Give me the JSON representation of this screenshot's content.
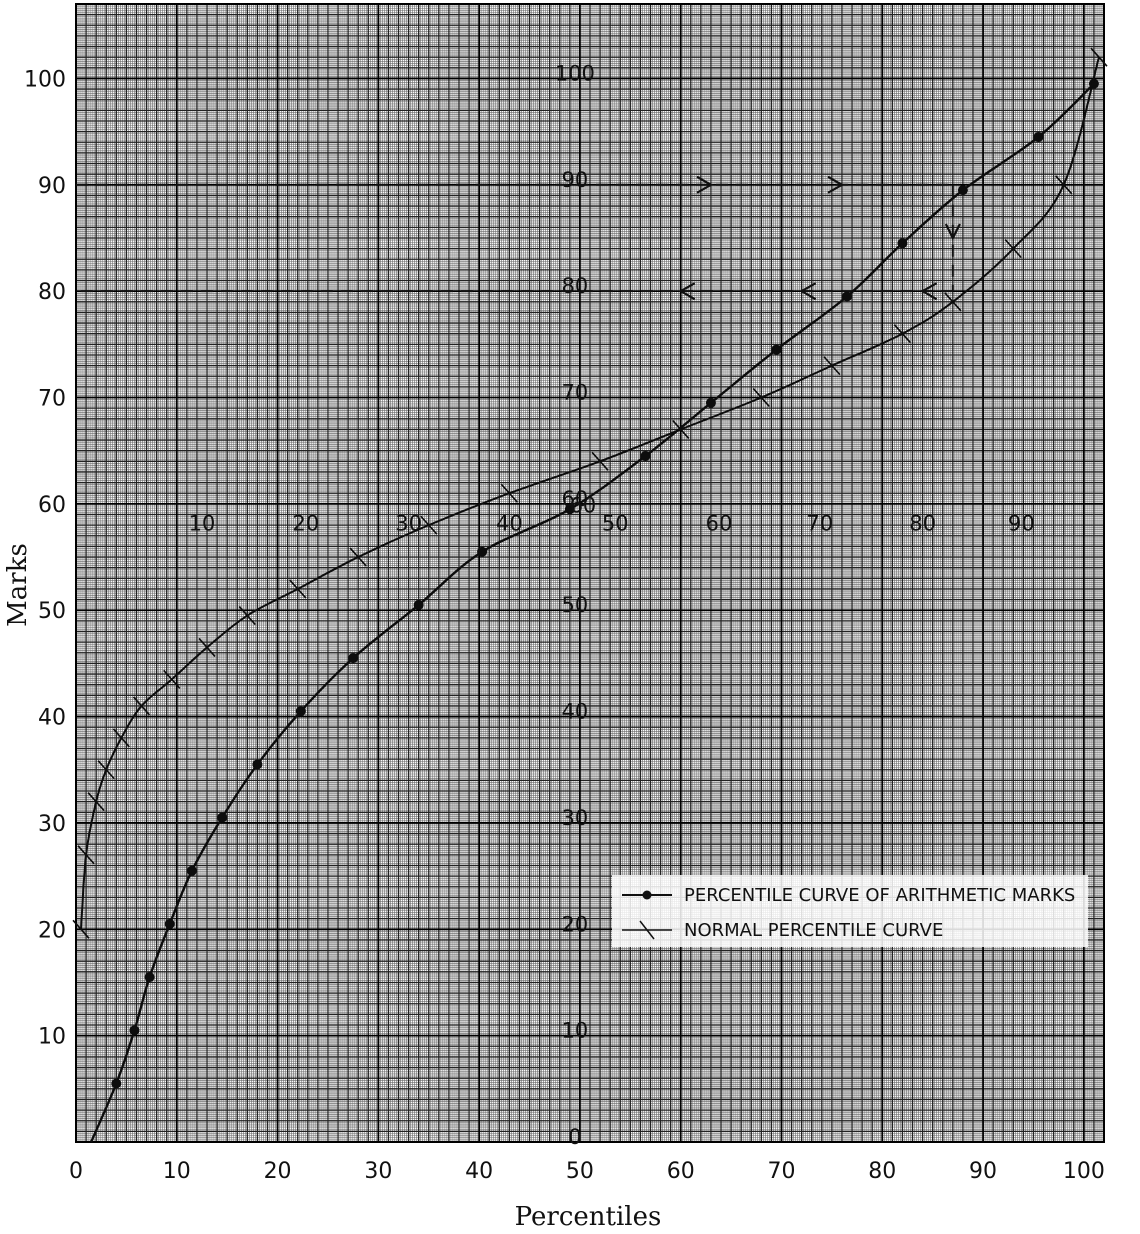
{
  "chart_data": {
    "type": "line",
    "xlabel": "Percentiles",
    "ylabel": "Marks",
    "xlim": [
      0,
      102
    ],
    "ylim": [
      0,
      107
    ],
    "x_ticks": [
      "0",
      "10",
      "20",
      "30",
      "40",
      "50",
      "60",
      "70",
      "80",
      "90",
      "100"
    ],
    "y_ticks": [
      "10",
      "20",
      "30",
      "40",
      "50",
      "60",
      "70",
      "80",
      "90",
      "100"
    ],
    "inner_x_ticks": [
      "10",
      "20",
      "30",
      "40",
      "50",
      "60",
      "70",
      "80",
      "90"
    ],
    "inner_y_ticks": [
      "0",
      "10",
      "20",
      "30",
      "40",
      "50",
      "60",
      "70",
      "80",
      "90",
      "100"
    ],
    "inner_scale_note": "60",
    "grid": true,
    "legend_position": "lower-right",
    "series": [
      {
        "name": "PERCENTILE CURVE OF ARITHMETIC MARKS",
        "marker": "dot",
        "x": [
          1.5,
          4,
          5.8,
          7.3,
          9.3,
          11.5,
          14.5,
          18,
          22.3,
          27.5,
          34,
          40.3,
          49,
          56.5,
          63,
          69.5,
          76.5,
          82,
          88,
          95.5,
          101
        ],
        "y": [
          0,
          5.5,
          10.5,
          15.5,
          20.5,
          25.5,
          30.5,
          35.5,
          40.5,
          45.5,
          50.5,
          55.5,
          59.5,
          64.5,
          69.5,
          74.5,
          79.5,
          84.5,
          89.5,
          94.5,
          99.5
        ]
      },
      {
        "name": "NORMAL PERCENTILE CURVE",
        "marker": "cross",
        "x": [
          0.5,
          1,
          2,
          3,
          4.5,
          6.5,
          9.5,
          13,
          17,
          22,
          28,
          35,
          43,
          52,
          60,
          68,
          75,
          82,
          87,
          93,
          98,
          101.5
        ],
        "y": [
          20,
          27,
          32,
          35,
          38,
          41,
          43.5,
          46.5,
          49.5,
          52,
          55,
          58,
          61,
          64,
          67,
          70,
          73,
          76,
          79,
          84,
          90,
          102
        ]
      }
    ],
    "guides": {
      "from_marks": 90,
      "at_percentile": 87,
      "to_marks": 80
    }
  }
}
